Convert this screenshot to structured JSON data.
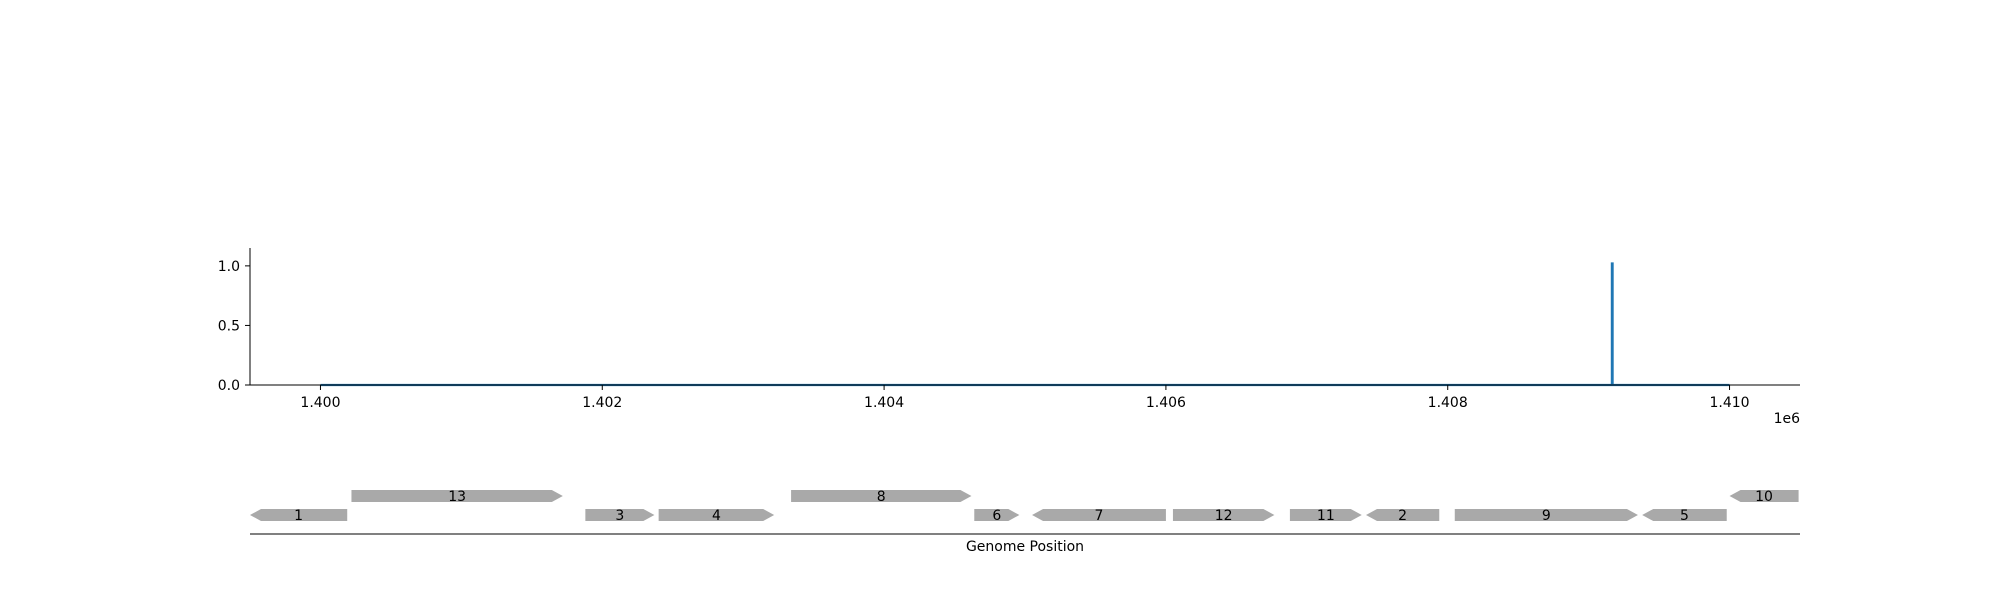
{
  "chart_data": [
    {
      "type": "line",
      "xlim": [
        1399500,
        1410500
      ],
      "ylim": [
        0.0,
        1.15
      ],
      "x_ticks": [
        1400000,
        1402000,
        1404000,
        1406000,
        1408000,
        1410000
      ],
      "x_tick_labels": [
        "1.400",
        "1.402",
        "1.404",
        "1.406",
        "1.408",
        "1.410"
      ],
      "x_offset_label": "1e6",
      "y_ticks": [
        0.0,
        0.5,
        1.0
      ],
      "y_tick_labels": [
        "0.0",
        "0.5",
        "1.0"
      ],
      "grid": false,
      "series": [
        {
          "color": "#1f77b4",
          "points": [
            [
              1400000,
              0.0
            ],
            [
              1409165,
              0.0
            ],
            [
              1409165,
              1.02
            ],
            [
              1409170,
              1.02
            ],
            [
              1409170,
              0.0
            ],
            [
              1410000,
              0.0
            ]
          ]
        }
      ]
    },
    {
      "type": "gene-map",
      "xlabel": "Genome Position",
      "xlim": [
        1399500,
        1410500
      ],
      "genes": [
        {
          "label": "1",
          "start": 1399500,
          "end": 1400190,
          "strand": "-",
          "track": 0
        },
        {
          "label": "13",
          "start": 1400220,
          "end": 1401720,
          "strand": "+",
          "track": 1
        },
        {
          "label": "3",
          "start": 1401880,
          "end": 1402370,
          "strand": "+",
          "track": 0
        },
        {
          "label": "4",
          "start": 1402400,
          "end": 1403220,
          "strand": "+",
          "track": 0
        },
        {
          "label": "8",
          "start": 1403340,
          "end": 1404620,
          "strand": "+",
          "track": 1
        },
        {
          "label": "6",
          "start": 1404640,
          "end": 1404960,
          "strand": "+",
          "track": 0
        },
        {
          "label": "7",
          "start": 1405050,
          "end": 1406000,
          "strand": "-",
          "track": 0
        },
        {
          "label": "12",
          "start": 1406050,
          "end": 1406770,
          "strand": "+",
          "track": 0
        },
        {
          "label": "11",
          "start": 1406880,
          "end": 1407390,
          "strand": "+",
          "track": 0
        },
        {
          "label": "2",
          "start": 1407420,
          "end": 1407940,
          "strand": "-",
          "track": 0
        },
        {
          "label": "9",
          "start": 1408050,
          "end": 1409350,
          "strand": "+",
          "track": 0
        },
        {
          "label": "5",
          "start": 1409380,
          "end": 1409980,
          "strand": "-",
          "track": 0
        },
        {
          "label": "10",
          "start": 1410000,
          "end": 1410490,
          "strand": "-",
          "track": 1
        }
      ],
      "gene_color": "#a9a9a9"
    }
  ]
}
